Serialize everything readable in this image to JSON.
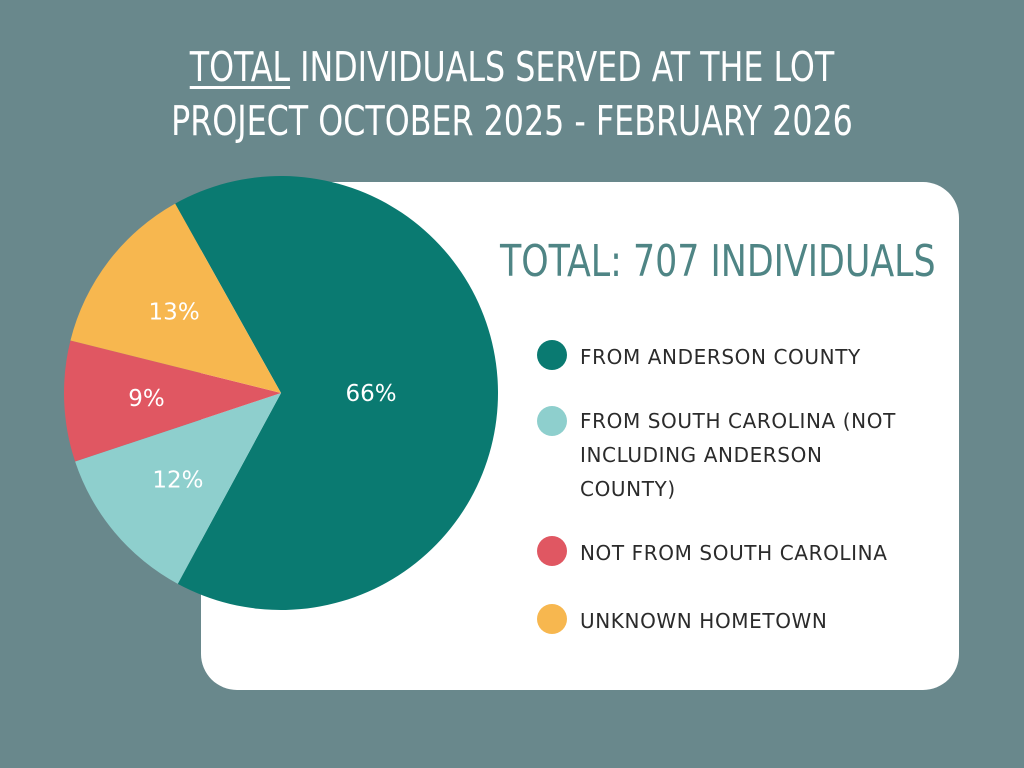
{
  "title": {
    "underlined_word": "TOTAL",
    "line1_rest": " INDIVIDUALS SERVED AT THE LOT",
    "line2": "PROJECT OCTOBER 2025 - FEBRUARY 2026"
  },
  "total_label": "TOTAL: 707 INDIVIDUALS",
  "chart_data": {
    "type": "pie",
    "title": "TOTAL INDIVIDUALS SERVED AT THE LOT PROJECT OCTOBER 2025 - FEBRUARY 2026",
    "legend_placement": "right",
    "slices": [
      {
        "name": "FROM ANDERSON COUNTY",
        "value": 66,
        "label": "66%",
        "color": "#0a7a71"
      },
      {
        "name": "FROM SOUTH CAROLINA (NOT INCLUDING ANDERSON COUNTY)",
        "value": 12,
        "label": "12%",
        "color": "#8ecfcd"
      },
      {
        "name": "NOT FROM SOUTH CAROLINA",
        "value": 9,
        "label": "9%",
        "color": "#e05762"
      },
      {
        "name": "UNKNOWN HOMETOWN",
        "value": 13,
        "label": "13%",
        "color": "#f7b74f"
      }
    ]
  },
  "legend": [
    {
      "lines": [
        "FROM ANDERSON COUNTY"
      ],
      "color": "#0a7a71"
    },
    {
      "lines": [
        "FROM SOUTH CAROLINA (NOT",
        "INCLUDING ANDERSON",
        "COUNTY)"
      ],
      "color": "#8ecfcd"
    },
    {
      "lines": [
        "NOT FROM SOUTH CAROLINA"
      ],
      "color": "#e05762"
    },
    {
      "lines": [
        "UNKNOWN HOMETOWN"
      ],
      "color": "#f7b74f"
    }
  ],
  "colors": {
    "background": "#69888c",
    "card": "#ffffff",
    "total_text": "#4f8585"
  }
}
